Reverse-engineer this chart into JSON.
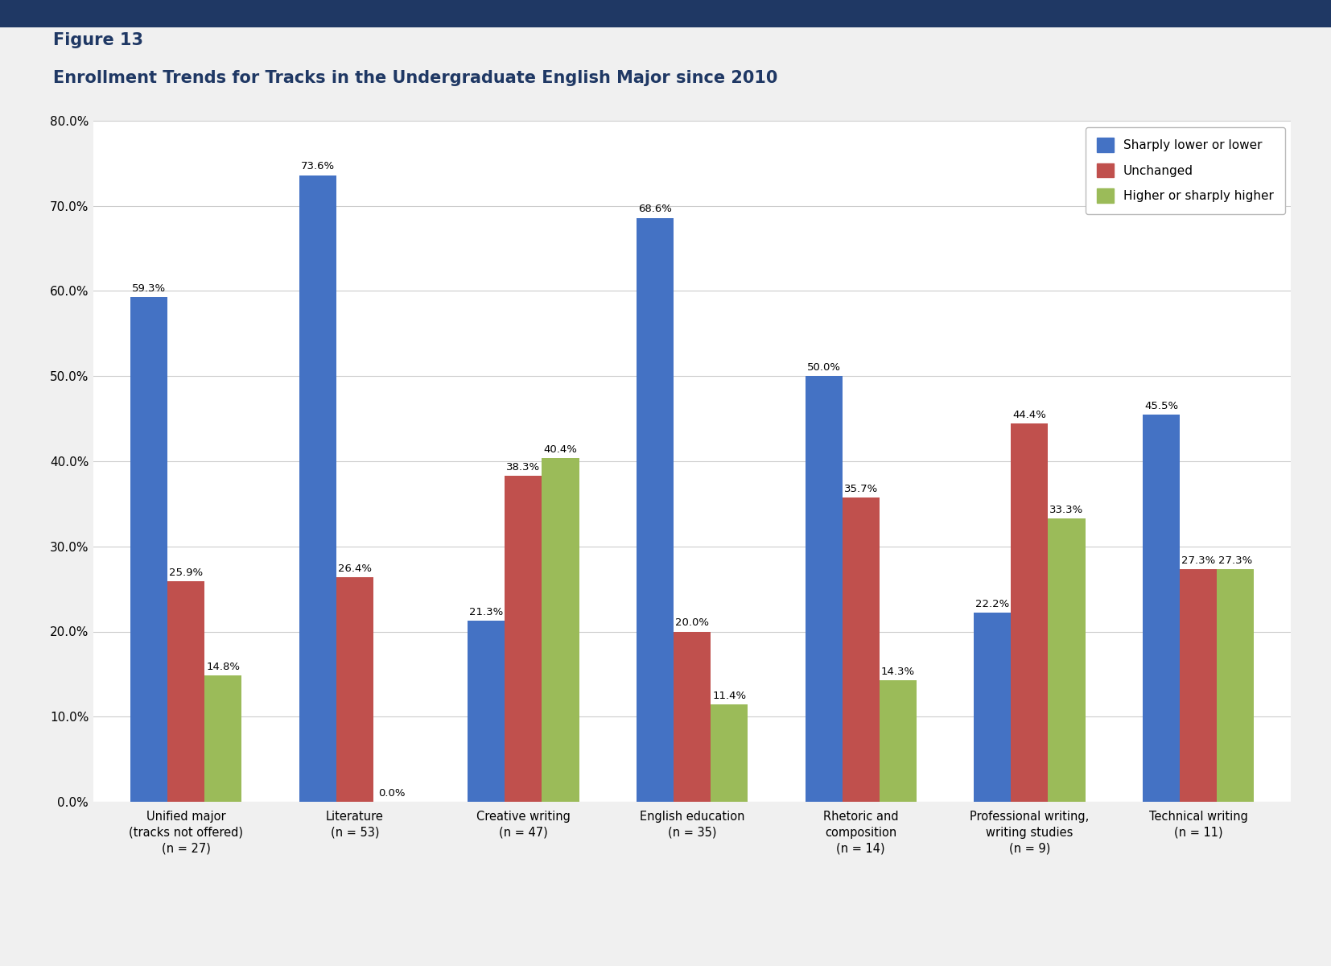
{
  "title_line1": "Figure 13",
  "title_line2": "Enrollment Trends for Tracks in the Undergraduate English Major since 2010",
  "title_color": "#1F3864",
  "categories": [
    "Unified major\n(tracks not offered)\n(n = 27)",
    "Literature\n(n = 53)",
    "Creative writing\n(n = 47)",
    "English education\n(n = 35)",
    "Rhetoric and\ncomposition\n(n = 14)",
    "Professional writing,\nwriting studies\n(n = 9)",
    "Technical writing\n(n = 11)"
  ],
  "series": {
    "Sharply lower or lower": [
      59.3,
      73.6,
      21.3,
      68.6,
      50.0,
      22.2,
      45.5
    ],
    "Unchanged": [
      25.9,
      26.4,
      38.3,
      20.0,
      35.7,
      44.4,
      27.3
    ],
    "Higher or sharply higher": [
      14.8,
      0.0,
      40.4,
      11.4,
      14.3,
      33.3,
      27.3
    ]
  },
  "colors": {
    "Sharply lower or lower": "#4472C4",
    "Unchanged": "#C0504D",
    "Higher or sharply higher": "#9BBB59"
  },
  "ylim": [
    0,
    80
  ],
  "yticks": [
    0,
    10,
    20,
    30,
    40,
    50,
    60,
    70,
    80
  ],
  "background_color": "#F0F0F0",
  "plot_background": "#FFFFFF",
  "grid_color": "#CCCCCC",
  "bar_width": 0.22,
  "top_bar_color": "#1F3864"
}
